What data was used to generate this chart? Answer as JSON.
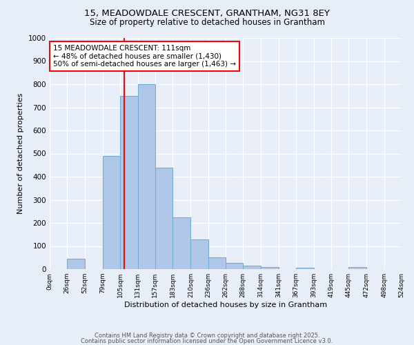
{
  "title_line1": "15, MEADOWDALE CRESCENT, GRANTHAM, NG31 8EY",
  "title_line2": "Size of property relative to detached houses in Grantham",
  "xlabel": "Distribution of detached houses by size in Grantham",
  "ylabel": "Number of detached properties",
  "bin_edges": [
    0,
    26,
    52,
    79,
    105,
    131,
    157,
    183,
    210,
    236,
    262,
    288,
    314,
    341,
    367,
    393,
    419,
    445,
    472,
    498,
    524
  ],
  "bar_heights": [
    0,
    45,
    0,
    490,
    750,
    800,
    440,
    225,
    128,
    52,
    28,
    15,
    10,
    0,
    5,
    0,
    0,
    8,
    0,
    0
  ],
  "bar_color": "#aec6e8",
  "bar_edgecolor": "#6aaad4",
  "property_size": 111,
  "vline_color": "red",
  "annotation_text": "15 MEADOWDALE CRESCENT: 111sqm\n← 48% of detached houses are smaller (1,430)\n50% of semi-detached houses are larger (1,463) →",
  "annotation_box_color": "white",
  "annotation_box_edgecolor": "red",
  "ylim": [
    0,
    1000
  ],
  "yticks": [
    0,
    100,
    200,
    300,
    400,
    500,
    600,
    700,
    800,
    900,
    1000
  ],
  "background_color": "#e8eef8",
  "grid_color": "white",
  "footer_line1": "Contains HM Land Registry data © Crown copyright and database right 2025.",
  "footer_line2": "Contains public sector information licensed under the Open Government Licence v3.0."
}
